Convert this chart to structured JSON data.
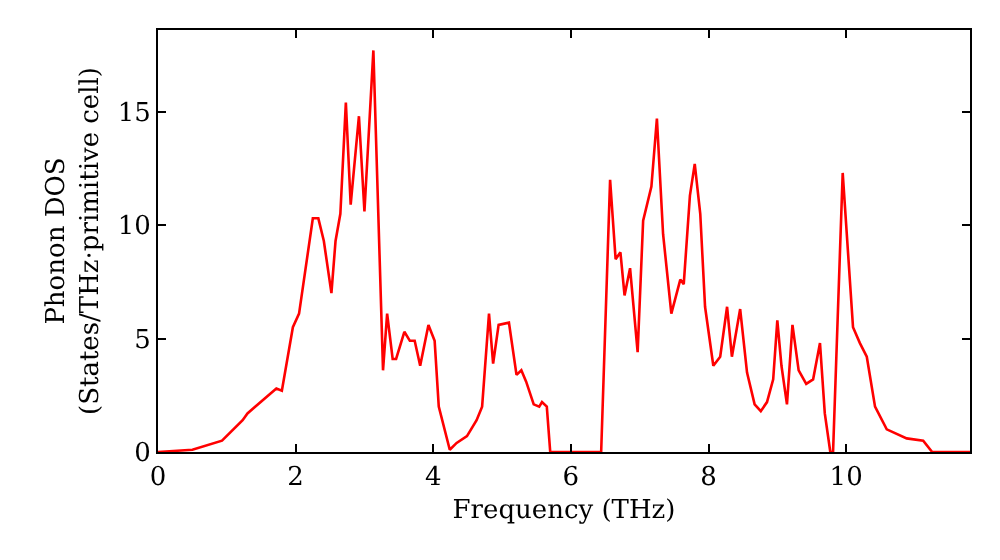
{
  "chart_data": {
    "type": "line",
    "xlabel": "Frequency (THz)",
    "ylabel": "Phonon DOS\n(States/THz·primitive cell)",
    "x": [
      0,
      0.5,
      0.93,
      1.23,
      1.3,
      1.72,
      1.8,
      1.96,
      2.05,
      2.25,
      2.33,
      2.41,
      2.52,
      2.58,
      2.65,
      2.73,
      2.8,
      2.92,
      3.0,
      3.13,
      3.27,
      3.33,
      3.41,
      3.46,
      3.58,
      3.66,
      3.73,
      3.81,
      3.93,
      4.02,
      4.08,
      4.24,
      4.34,
      4.49,
      4.63,
      4.71,
      4.81,
      4.87,
      4.95,
      5.1,
      5.21,
      5.28,
      5.35,
      5.46,
      5.54,
      5.58,
      5.65,
      5.7,
      6.44,
      6.57,
      6.65,
      6.72,
      6.78,
      6.86,
      6.97,
      7.05,
      7.17,
      7.25,
      7.34,
      7.46,
      7.59,
      7.64,
      7.73,
      7.8,
      7.88,
      7.95,
      8.07,
      8.17,
      8.27,
      8.34,
      8.46,
      8.56,
      8.67,
      8.76,
      8.85,
      8.94,
      9.0,
      9.06,
      9.14,
      9.22,
      9.31,
      9.42,
      9.52,
      9.62,
      9.69,
      9.77,
      9.81,
      9.95,
      10.1,
      10.2,
      10.3,
      10.42,
      10.59,
      10.88,
      11.12,
      11.25,
      11.8
    ],
    "series": [
      {
        "color": "#ff0000",
        "values": [
          0,
          0.1,
          0.5,
          1.4,
          1.7,
          2.8,
          2.7,
          5.5,
          6.1,
          10.3,
          10.3,
          9.3,
          7.0,
          9.3,
          10.5,
          15.4,
          10.9,
          14.8,
          10.6,
          17.7,
          3.6,
          6.1,
          4.1,
          4.1,
          5.3,
          4.9,
          4.9,
          3.8,
          5.6,
          4.9,
          2.0,
          0.1,
          0.4,
          0.7,
          1.4,
          2.0,
          6.1,
          3.9,
          5.6,
          5.7,
          3.4,
          3.6,
          3.1,
          2.1,
          2.0,
          2.2,
          2.0,
          0,
          0,
          12.0,
          8.5,
          8.8,
          6.9,
          8.1,
          4.4,
          10.2,
          11.7,
          14.7,
          9.6,
          6.1,
          7.6,
          7.4,
          11.3,
          12.7,
          10.5,
          6.4,
          3.8,
          4.2,
          6.4,
          4.2,
          6.3,
          3.5,
          2.1,
          1.8,
          2.2,
          3.2,
          5.8,
          3.8,
          2.1,
          5.6,
          3.6,
          3.0,
          3.2,
          4.8,
          1.7,
          0,
          0,
          12.3,
          5.5,
          4.8,
          4.2,
          2.0,
          1.0,
          0.6,
          0.5,
          0,
          0
        ]
      }
    ],
    "xlim": [
      0,
      11.8
    ],
    "ylim": [
      0,
      18.6
    ],
    "xticks": [
      0,
      2,
      4,
      6,
      8,
      10
    ],
    "yticks": [
      0,
      5,
      10,
      15
    ],
    "marker": "none",
    "line_style": "solid"
  }
}
